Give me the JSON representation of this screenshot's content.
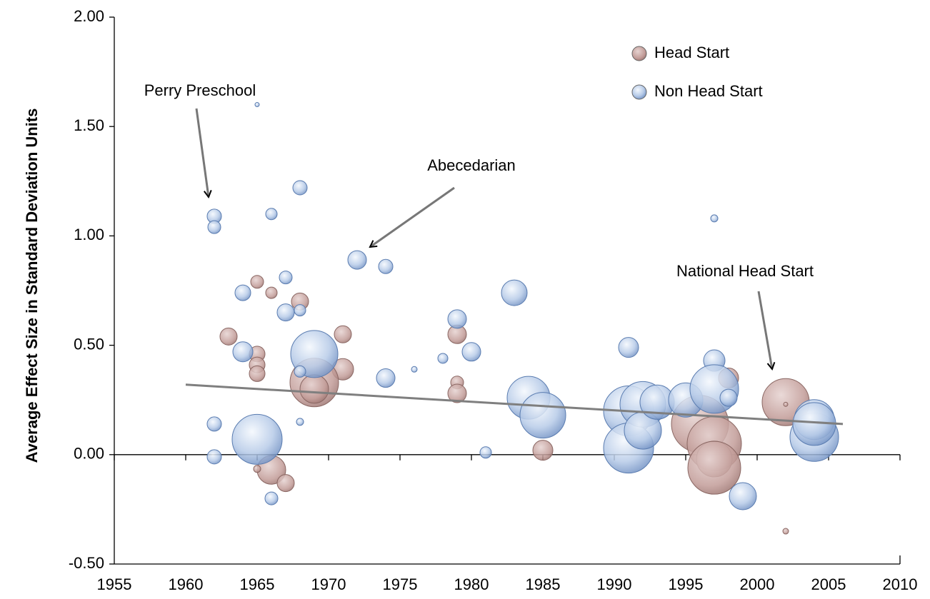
{
  "chart_data": {
    "type": "bubble",
    "y_label": "Average Effect Size in Standard Deviation Units",
    "xlim": [
      1955,
      2010
    ],
    "xticks": [
      1955,
      1960,
      1965,
      1970,
      1975,
      1980,
      1985,
      1990,
      1995,
      2000,
      2005,
      2010
    ],
    "ylim": [
      -0.5,
      2.0
    ],
    "yticks": [
      {
        "value": -0.5,
        "label": "-0.50"
      },
      {
        "value": 0,
        "label": "0.00"
      },
      {
        "value": 0.5,
        "label": "0.50"
      },
      {
        "value": 1.0,
        "label": "1.00"
      },
      {
        "value": 1.5,
        "label": "1.50"
      },
      {
        "value": 2.0,
        "label": "2.00"
      }
    ],
    "legend": "top-right",
    "series": [
      {
        "name": "Head Start",
        "color": "#b9918d",
        "x": [
          1965,
          1966,
          1968,
          1963,
          1965,
          1965,
          1965,
          1971,
          1971,
          1969,
          1969,
          1966,
          1967,
          1965,
          1979,
          1979,
          1979,
          1985,
          1996,
          1997,
          1997,
          1997,
          1998,
          2002,
          2002,
          2002
        ],
        "values": [
          0.79,
          0.74,
          0.7,
          0.54,
          0.46,
          0.41,
          0.37,
          0.55,
          0.39,
          0.33,
          0.3,
          -0.07,
          -0.13,
          -0.065,
          0.55,
          0.33,
          0.28,
          0.02,
          0.14,
          0.05,
          -0.02,
          -0.06,
          0.35,
          0.24,
          0.23,
          -0.35
        ],
        "sizes": [
          81,
          64,
          144,
          144,
          121,
          121,
          121,
          144,
          225,
          1156,
          400,
          400,
          144,
          25,
          169,
          81,
          169,
          196,
          1600,
          1444,
          625,
          1369,
          196,
          1089,
          9,
          16
        ]
      },
      {
        "name": "Non Head Start",
        "color": "#9db5dc",
        "x": [
          1962,
          1962,
          1962,
          1962,
          1965,
          1966,
          1968,
          1967,
          1964,
          1967,
          1968,
          1964,
          1969,
          1968,
          1968,
          1965,
          1966,
          1972,
          1974,
          1974,
          1976,
          1978,
          1979,
          1980,
          1981,
          1983,
          1984,
          1985,
          1991,
          1991,
          1991,
          1992,
          1992,
          1993,
          1995,
          1997,
          1997,
          1997,
          1998,
          1999,
          2004,
          2004,
          2004
        ],
        "values": [
          1.09,
          1.04,
          0.14,
          -0.01,
          1.6,
          1.1,
          1.22,
          0.81,
          0.74,
          0.65,
          0.66,
          0.47,
          0.46,
          0.38,
          0.15,
          0.07,
          -0.2,
          0.89,
          0.86,
          0.35,
          0.39,
          0.44,
          0.62,
          0.47,
          0.01,
          0.74,
          0.26,
          0.18,
          0.49,
          0.2,
          0.03,
          0.23,
          0.11,
          0.24,
          0.25,
          0.43,
          0.3,
          1.08,
          0.26,
          -0.19,
          0.08,
          0.16,
          0.14
        ],
        "sizes": [
          100,
          81,
          100,
          100,
          9,
          64,
          100,
          81,
          121,
          144,
          64,
          196,
          1089,
          64,
          25,
          1225,
          81,
          169,
          100,
          169,
          16,
          49,
          169,
          169,
          64,
          324,
          900,
          1024,
          196,
          1225,
          1225,
          1024,
          676,
          576,
          576,
          225,
          1156,
          25,
          144,
          361,
          1156,
          784,
          900
        ]
      }
    ],
    "trendline": {
      "color": "#7f7f7f",
      "x": [
        1960,
        2006
      ],
      "values": [
        0.32,
        0.14
      ]
    },
    "annotations": [
      "Perry Preschool",
      "Abecedarian",
      "National Head Start"
    ]
  }
}
